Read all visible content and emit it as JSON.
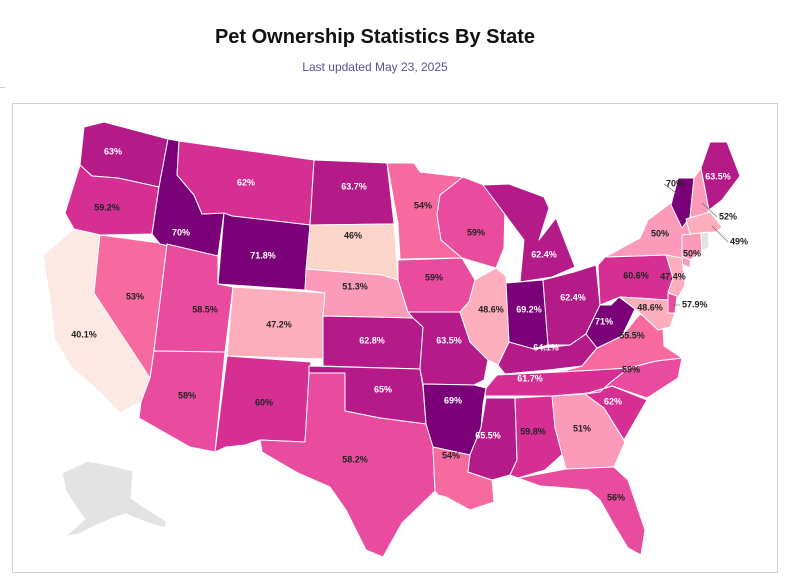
{
  "title": "Pet Ownership Statistics By State",
  "subtitle": "Last updated May 23, 2025",
  "colors": {
    "scale": [
      "#fde9e3",
      "#fcd5cb",
      "#fdaebd",
      "#fb9ab9",
      "#f76aa0",
      "#e94c9f",
      "#d52f94",
      "#b41b89",
      "#920785",
      "#7a0177"
    ],
    "no_data": "#e3e3e3",
    "border": "#ffffff"
  },
  "states": [
    {
      "abbr": "WA",
      "value": 63,
      "label": "63%"
    },
    {
      "abbr": "OR",
      "value": 59.2,
      "label": "59.2%"
    },
    {
      "abbr": "CA",
      "value": 40.1,
      "label": "40.1%"
    },
    {
      "abbr": "NV",
      "value": 53,
      "label": "53%"
    },
    {
      "abbr": "ID",
      "value": 70,
      "label": "70%"
    },
    {
      "abbr": "MT",
      "value": 62,
      "label": "62%"
    },
    {
      "abbr": "WY",
      "value": 71.8,
      "label": "71.8%"
    },
    {
      "abbr": "UT",
      "value": 58.5,
      "label": "58.5%"
    },
    {
      "abbr": "AZ",
      "value": 58,
      "label": "58%"
    },
    {
      "abbr": "CO",
      "value": 47.2,
      "label": "47.2%"
    },
    {
      "abbr": "NM",
      "value": 60,
      "label": "60%"
    },
    {
      "abbr": "ND",
      "value": 63.7,
      "label": "63.7%"
    },
    {
      "abbr": "SD",
      "value": 46,
      "label": "46%"
    },
    {
      "abbr": "NE",
      "value": 51.3,
      "label": "51.3%"
    },
    {
      "abbr": "KS",
      "value": 62.8,
      "label": "62.8%"
    },
    {
      "abbr": "OK",
      "value": 65,
      "label": "65%"
    },
    {
      "abbr": "TX",
      "value": 58.2,
      "label": "58.2%"
    },
    {
      "abbr": "MN",
      "value": 54,
      "label": "54%"
    },
    {
      "abbr": "IA",
      "value": 59,
      "label": "59%"
    },
    {
      "abbr": "MO",
      "value": 63.5,
      "label": "63.5%"
    },
    {
      "abbr": "AR",
      "value": 69,
      "label": "69%"
    },
    {
      "abbr": "LA",
      "value": 54,
      "label": "54%"
    },
    {
      "abbr": "WI",
      "value": 59,
      "label": "59%"
    },
    {
      "abbr": "IL",
      "value": 48.6,
      "label": "48.6%"
    },
    {
      "abbr": "MI",
      "value": 62.4,
      "label": "62.4%"
    },
    {
      "abbr": "IN",
      "value": 69.2,
      "label": "69.2%"
    },
    {
      "abbr": "OH",
      "value": 62.4,
      "label": "62.4%"
    },
    {
      "abbr": "KY",
      "value": 64.1,
      "label": "64.1%"
    },
    {
      "abbr": "TN",
      "value": 61.7,
      "label": "61.7%"
    },
    {
      "abbr": "MS",
      "value": 65.5,
      "label": "65.5%"
    },
    {
      "abbr": "AL",
      "value": 59.8,
      "label": "59.8%"
    },
    {
      "abbr": "GA",
      "value": 51,
      "label": "51%"
    },
    {
      "abbr": "FL",
      "value": 56,
      "label": "56%"
    },
    {
      "abbr": "SC",
      "value": 62,
      "label": "62%"
    },
    {
      "abbr": "NC",
      "value": 59,
      "label": "59%"
    },
    {
      "abbr": "VA",
      "value": 55.5,
      "label": "55.5%"
    },
    {
      "abbr": "WV",
      "value": 71,
      "label": "71%"
    },
    {
      "abbr": "PA",
      "value": 60.6,
      "label": "60.6%"
    },
    {
      "abbr": "NY",
      "value": 50,
      "label": "50%"
    },
    {
      "abbr": "VT",
      "value": 70,
      "label": "70%"
    },
    {
      "abbr": "NH",
      "value": 52,
      "label": "52%"
    },
    {
      "abbr": "ME",
      "value": 63.5,
      "label": "63.5%"
    },
    {
      "abbr": "MA",
      "value": 49,
      "label": "49%"
    },
    {
      "abbr": "CT",
      "value": 50,
      "label": "50%"
    },
    {
      "abbr": "NJ",
      "value": 47.4,
      "label": "47.4%"
    },
    {
      "abbr": "DE",
      "value": 57.9,
      "label": "57.9%"
    },
    {
      "abbr": "MD",
      "value": 48.6,
      "label": "48.6%"
    },
    {
      "abbr": "RI",
      "value": null,
      "label": ""
    },
    {
      "abbr": "AK",
      "value": null,
      "label": ""
    }
  ]
}
